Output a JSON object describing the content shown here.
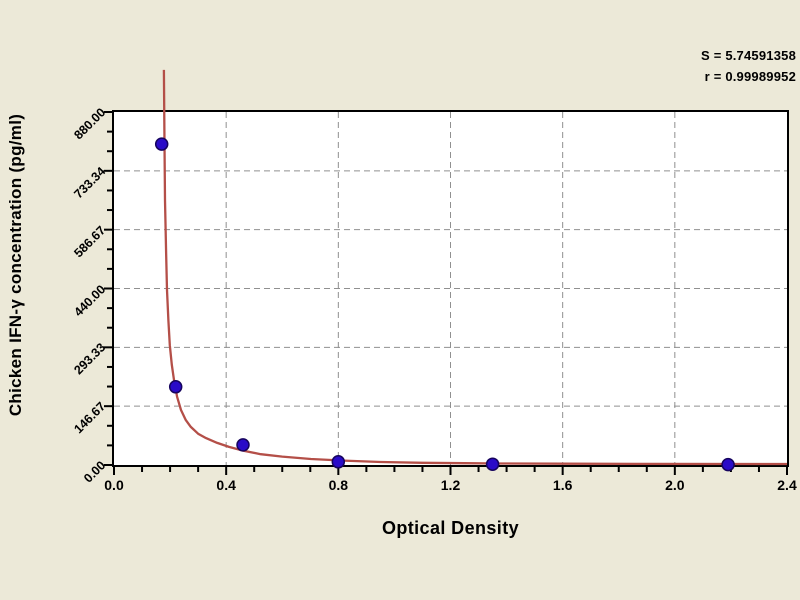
{
  "colors": {
    "background": "#ece9d8",
    "plot_background": "#ffffff",
    "axis": "#000000",
    "grid": "#909090",
    "curve": "#b44f48",
    "marker_fill": "#2a0bc8",
    "marker_edge": "#16045e",
    "text": "#000000"
  },
  "stats": {
    "s_text": "S = 5.74591358",
    "r_text": "r = 0.99989952"
  },
  "chart_data": {
    "type": "scatter",
    "title": "",
    "xlabel": "Optical Density",
    "ylabel": "Chicken IFN-γ concentration (pg/ml)",
    "xlim": [
      0.0,
      2.4
    ],
    "ylim": [
      0.0,
      880.0
    ],
    "grid": true,
    "legend": "none",
    "x_tick_labels": [
      "0.0",
      "0.4",
      "0.8",
      "1.2",
      "1.6",
      "2.0",
      "2.4"
    ],
    "y_tick_labels": [
      "0.00",
      "146.67",
      "293.33",
      "440.00",
      "586.67",
      "733.34",
      "880.00"
    ],
    "x_minor_divisions_per_major": 4,
    "y_minor_divisions_per_major": 3,
    "points": [
      {
        "od": 0.17,
        "conc": 800
      },
      {
        "od": 0.22,
        "conc": 195
      },
      {
        "od": 0.46,
        "conc": 50
      },
      {
        "od": 0.8,
        "conc": 8
      },
      {
        "od": 1.35,
        "conc": 2
      },
      {
        "od": 2.19,
        "conc": 1
      }
    ],
    "fit": {
      "s": 5.74591358,
      "r": 0.99989952,
      "curve_type": "inverse standard curve"
    },
    "curve_samples": [
      [
        0.178,
        985
      ],
      [
        0.18,
        800
      ],
      [
        0.182,
        660
      ],
      [
        0.186,
        520
      ],
      [
        0.189,
        436
      ],
      [
        0.194,
        360
      ],
      [
        0.199,
        299
      ],
      [
        0.206,
        250
      ],
      [
        0.214,
        212
      ],
      [
        0.225,
        170
      ],
      [
        0.239,
        137
      ],
      [
        0.256,
        112
      ],
      [
        0.274,
        95
      ],
      [
        0.3,
        78
      ],
      [
        0.328,
        67
      ],
      [
        0.368,
        55
      ],
      [
        0.41,
        45
      ],
      [
        0.46,
        36
      ],
      [
        0.523,
        27
      ],
      [
        0.6,
        21
      ],
      [
        0.702,
        15
      ],
      [
        0.82,
        11
      ],
      [
        0.951,
        7.5
      ],
      [
        1.1,
        5.5
      ],
      [
        1.25,
        4.4
      ],
      [
        1.378,
        3.7
      ],
      [
        1.6,
        3.2
      ],
      [
        1.9,
        2.8
      ],
      [
        2.4,
        2.5
      ]
    ]
  }
}
